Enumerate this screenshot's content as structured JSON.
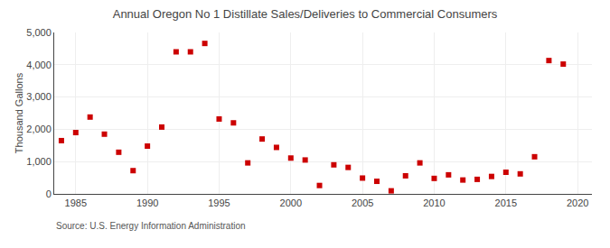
{
  "chart_data": {
    "type": "scatter",
    "title": "Annual Oregon No 1 Distillate Sales/Deliveries to Commercial Consumers",
    "ylabel": "Thousand Gallons",
    "annotations": [
      "Source: U.S. Energy Information Administration"
    ],
    "x": [
      1984,
      1985,
      1986,
      1987,
      1988,
      1989,
      1990,
      1991,
      1992,
      1993,
      1994,
      1995,
      1996,
      1997,
      1998,
      1999,
      2000,
      2001,
      2002,
      2003,
      2004,
      2005,
      2006,
      2007,
      2008,
      2009,
      2010,
      2011,
      2012,
      2013,
      2014,
      2015,
      2016,
      2017,
      2018,
      2019,
      2020
    ],
    "values": [
      1650,
      1900,
      2380,
      1850,
      1290,
      720,
      1480,
      2070,
      4400,
      4400,
      4660,
      2320,
      2200,
      960,
      1700,
      1440,
      1110,
      1050,
      260,
      900,
      820,
      490,
      390,
      95,
      560,
      960,
      480,
      590,
      430,
      450,
      540,
      670,
      620,
      1150,
      4130,
      4020,
      null
    ],
    "color": "#cc0000",
    "marker": "square",
    "xlim": [
      1983.5,
      2021
    ],
    "xticks": [
      1985,
      1990,
      1995,
      2000,
      2005,
      2010,
      2015,
      2020
    ],
    "ylim": [
      0,
      5000
    ],
    "yticks": [
      0,
      {
        "value": 1000,
        "label": "1,000"
      },
      {
        "value": 2000,
        "label": "2,000"
      },
      {
        "value": 3000,
        "label": "3,000"
      },
      {
        "value": 4000,
        "label": "4,000"
      },
      {
        "value": 5000,
        "label": "5,000"
      }
    ],
    "grid": true
  }
}
